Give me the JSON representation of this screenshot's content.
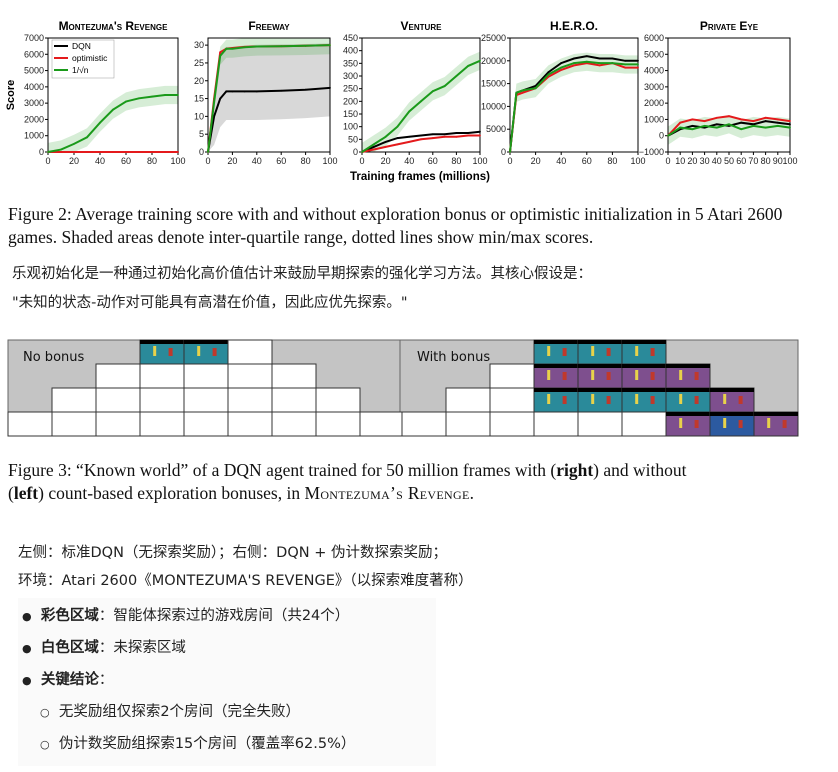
{
  "charts": {
    "ylabel": "Score",
    "xlabel": "Training frames (millions)",
    "legend": [
      "DQN",
      "optimistic",
      "1/√n"
    ],
    "colors": {
      "dqn": "#000000",
      "optimistic": "#e41a1c",
      "bonus": "#1a9a1a",
      "shade": "#d8d8d8"
    },
    "panels": [
      {
        "title": "Montezuma's Revenge",
        "yticks": [
          "0",
          "1000",
          "2000",
          "3000",
          "4000",
          "5000",
          "6000",
          "7000"
        ],
        "xticks": [
          "0",
          "20",
          "40",
          "60",
          "80",
          "100"
        ]
      },
      {
        "title": "Freeway",
        "yticks": [
          "0",
          "5",
          "10",
          "15",
          "20",
          "25",
          "30"
        ],
        "xticks": [
          "0",
          "20",
          "40",
          "60",
          "80",
          "100"
        ]
      },
      {
        "title": "Venture",
        "yticks": [
          "0",
          "50",
          "100",
          "150",
          "200",
          "250",
          "300",
          "350",
          "400",
          "450"
        ],
        "xticks": [
          "0",
          "20",
          "40",
          "60",
          "80",
          "100"
        ]
      },
      {
        "title": "H.E.R.O.",
        "yticks": [
          "0",
          "5000",
          "10000",
          "15000",
          "20000",
          "25000"
        ],
        "xticks": [
          "0",
          "20",
          "40",
          "60",
          "80",
          "100"
        ]
      },
      {
        "title": "Private Eye",
        "yticks": [
          "−1000",
          "0",
          "1000",
          "2000",
          "3000",
          "4000",
          "5000",
          "6000"
        ],
        "xticks": [
          "0",
          "10",
          "20",
          "30",
          "40",
          "50",
          "60",
          "70",
          "80",
          "90",
          "100"
        ]
      }
    ]
  },
  "chart_data": [
    {
      "type": "line",
      "title": "Montezuma's Revenge",
      "x": [
        0,
        10,
        20,
        30,
        40,
        50,
        60,
        70,
        80,
        90,
        100
      ],
      "series": [
        {
          "name": "DQN",
          "values": [
            0,
            0,
            0,
            0,
            0,
            0,
            0,
            0,
            0,
            0,
            0
          ]
        },
        {
          "name": "optimistic",
          "values": [
            0,
            0,
            0,
            0,
            0,
            0,
            0,
            0,
            0,
            0,
            0
          ]
        },
        {
          "name": "1/√n",
          "values": [
            0,
            150,
            500,
            900,
            1800,
            2600,
            3100,
            3300,
            3400,
            3500,
            3500
          ]
        }
      ],
      "ylim": [
        0,
        7000
      ],
      "xlim": [
        0,
        100
      ]
    },
    {
      "type": "line",
      "title": "Freeway",
      "x": [
        0,
        5,
        10,
        15,
        20,
        30,
        40,
        60,
        80,
        100
      ],
      "series": [
        {
          "name": "DQN",
          "values": [
            0,
            10,
            15,
            17,
            17,
            17,
            17,
            17.2,
            17.5,
            18
          ]
        },
        {
          "name": "optimistic",
          "values": [
            0,
            15,
            28,
            29,
            29.2,
            29.5,
            29.6,
            29.7,
            29.8,
            30
          ]
        },
        {
          "name": "1/√n",
          "values": [
            0,
            14,
            27,
            29,
            29,
            29.4,
            29.6,
            29.7,
            29.8,
            30
          ]
        }
      ],
      "ylim": [
        0,
        32
      ],
      "xlim": [
        0,
        100
      ]
    },
    {
      "type": "line",
      "title": "Venture",
      "x": [
        0,
        10,
        20,
        30,
        40,
        50,
        60,
        70,
        80,
        90,
        100
      ],
      "series": [
        {
          "name": "DQN",
          "values": [
            0,
            20,
            40,
            55,
            60,
            65,
            70,
            70,
            75,
            75,
            80
          ]
        },
        {
          "name": "optimistic",
          "values": [
            0,
            10,
            20,
            30,
            40,
            50,
            55,
            60,
            60,
            65,
            65
          ]
        },
        {
          "name": "1/√n",
          "values": [
            0,
            30,
            60,
            100,
            160,
            200,
            240,
            260,
            300,
            340,
            360
          ]
        }
      ],
      "ylim": [
        0,
        450
      ],
      "xlim": [
        0,
        100
      ]
    },
    {
      "type": "line",
      "title": "H.E.R.O.",
      "x": [
        0,
        5,
        10,
        20,
        30,
        40,
        50,
        60,
        70,
        80,
        90,
        100
      ],
      "series": [
        {
          "name": "DQN",
          "values": [
            0,
            13000,
            13500,
            14500,
            17500,
            19500,
            20500,
            21000,
            20500,
            20500,
            20000,
            20000
          ]
        },
        {
          "name": "optimistic",
          "values": [
            0,
            12500,
            13000,
            14000,
            16500,
            18000,
            19000,
            19500,
            19000,
            19500,
            18500,
            18500
          ]
        },
        {
          "name": "1/√n",
          "values": [
            0,
            13000,
            13500,
            14000,
            17000,
            18500,
            19500,
            19800,
            19500,
            19500,
            19200,
            19200
          ]
        }
      ],
      "ylim": [
        0,
        25000
      ],
      "xlim": [
        0,
        100
      ]
    },
    {
      "type": "line",
      "title": "Private Eye",
      "x": [
        0,
        10,
        20,
        30,
        40,
        50,
        60,
        70,
        80,
        90,
        100
      ],
      "series": [
        {
          "name": "DQN",
          "values": [
            0,
            400,
            600,
            500,
            700,
            600,
            800,
            700,
            900,
            800,
            700
          ]
        },
        {
          "name": "optimistic",
          "values": [
            0,
            800,
            1000,
            900,
            1100,
            1200,
            1000,
            900,
            1100,
            1000,
            900
          ]
        },
        {
          "name": "1/√n",
          "values": [
            0,
            500,
            400,
            600,
            500,
            700,
            400,
            600,
            500,
            600,
            500
          ]
        }
      ],
      "ylim": [
        -1000,
        6000
      ],
      "xlim": [
        0,
        100
      ]
    }
  ],
  "figure2_caption": "Figure 2: Average training score with and without exploration bonus or optimistic initialization in 5 Atari 2600 games. Shaded areas denote inter-quartile range, dotted lines show min/max scores.",
  "note1": {
    "line1": "乐观初始化是一种通过初始化高价值估计来鼓励早期探索的强化学习方法。其核心假设是：",
    "line2": "\"未知的状态-动作对可能具有高潜在价值，因此应优先探索。\""
  },
  "grid_figure": {
    "left_label": "No bonus",
    "right_label": "With bonus"
  },
  "figure3_caption": {
    "part1": "Figure 3: “Known world” of a DQN agent trained for 50 million frames with (",
    "bold1": "right",
    "part2": ") and without",
    "part3": "(",
    "bold2": "left",
    "part4": ") count-based exploration bonuses, in ",
    "game": "Montezuma’s Revenge",
    "end": "."
  },
  "note2": {
    "line1": "左侧：标准DQN（无探索奖励）；右侧：DQN + 伪计数探索奖励；",
    "line2": "环境：Atari 2600《MONTEZUMA'S REVENGE》（以探索难度著称）"
  },
  "bullets": [
    {
      "bold": "彩色区域",
      "text": "：智能体探索过的游戏房间（共24个）"
    },
    {
      "bold": "白色区域",
      "text": "：未探索区域"
    },
    {
      "bold": "关键结论",
      "text": "："
    }
  ],
  "sub_bullets": [
    "无奖励组仅探索2个房间（完全失败）",
    "伪计数奖励组探索15个房间（覆盖率62.5%）"
  ]
}
